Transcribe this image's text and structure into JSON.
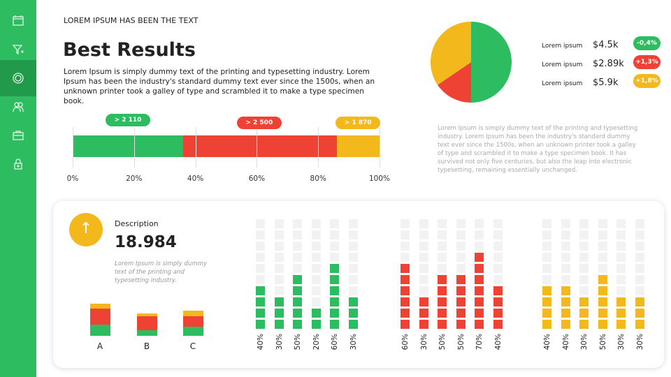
{
  "sidebar": {
    "items": [
      {
        "icon": "calendar-icon"
      },
      {
        "icon": "filter-add-icon"
      },
      {
        "icon": "settings-icon",
        "active": true
      },
      {
        "icon": "users-icon"
      },
      {
        "icon": "briefcase-icon"
      },
      {
        "icon": "lock-icon"
      }
    ]
  },
  "header": {
    "kicker": "LOREM IPSUM HAS BEEN THE TEXT",
    "title": "Best Results",
    "intro": "Lorem Ipsum is simply dummy text of the printing and typesetting industry. Lorem Ipsum has been the industry's standard dummy text ever since the 1500s, when an unknown printer took a galley of type and scrambled it to make a type specimen book."
  },
  "colors": {
    "green": "#2dbd60",
    "red": "#ee4235",
    "yellow": "#f3b81b"
  },
  "progress": {
    "segments": [
      {
        "color": "green",
        "percent": 36,
        "label": "> 2 110"
      },
      {
        "color": "red",
        "percent": 50,
        "label": "> 2 500"
      },
      {
        "color": "yellow",
        "percent": 14,
        "label": "> 1 870"
      }
    ],
    "ticks": [
      "0%",
      "20%",
      "40%",
      "60%",
      "80%",
      "100%"
    ]
  },
  "pie": {
    "slices": [
      {
        "color": "green",
        "percent": 50
      },
      {
        "color": "red",
        "percent": 15.5
      },
      {
        "color": "yellow",
        "percent": 34.5
      }
    ]
  },
  "legend": [
    {
      "label": "Lorem ipsum",
      "value": "$4.5k",
      "change": "-0,4%",
      "color": "green"
    },
    {
      "label": "Lorem ipsum",
      "value": "$2.89k",
      "change": "+1,3%",
      "color": "red"
    },
    {
      "label": "Lorem ipsum",
      "value": "$5.9k",
      "change": "+1,8%",
      "color": "yellow"
    }
  ],
  "side_text": "Lorem Ipsum is simply dummy text of the printing and typesetting industry. Lorem Ipsum has been the industry's standard dummy text ever since the 1500s, when an unknown printer took a galley of type and scrambled it to make a type specimen book. It has survived not only five centuries, but also the leap into electronic typesetting, remaining essentially  unchanged.",
  "card": {
    "arrow": "↑",
    "description": "Description",
    "number": "18.984",
    "text": "Lorem Ipsum is simply dummy text of the printing and typesetting industry.",
    "stacked": [
      {
        "label": "A",
        "green": 16,
        "red": 23,
        "yellow": 7
      },
      {
        "label": "B",
        "green": 8,
        "red": 20,
        "yellow": 4
      },
      {
        "label": "C",
        "green": 13,
        "red": 15,
        "yellow": 8
      }
    ],
    "waffles": [
      {
        "color": "green",
        "values": [
          40,
          30,
          50,
          20,
          60,
          30
        ]
      },
      {
        "color": "red",
        "values": [
          60,
          30,
          50,
          50,
          70,
          40
        ]
      },
      {
        "color": "yellow",
        "values": [
          40,
          40,
          30,
          50,
          30,
          30
        ]
      }
    ]
  }
}
